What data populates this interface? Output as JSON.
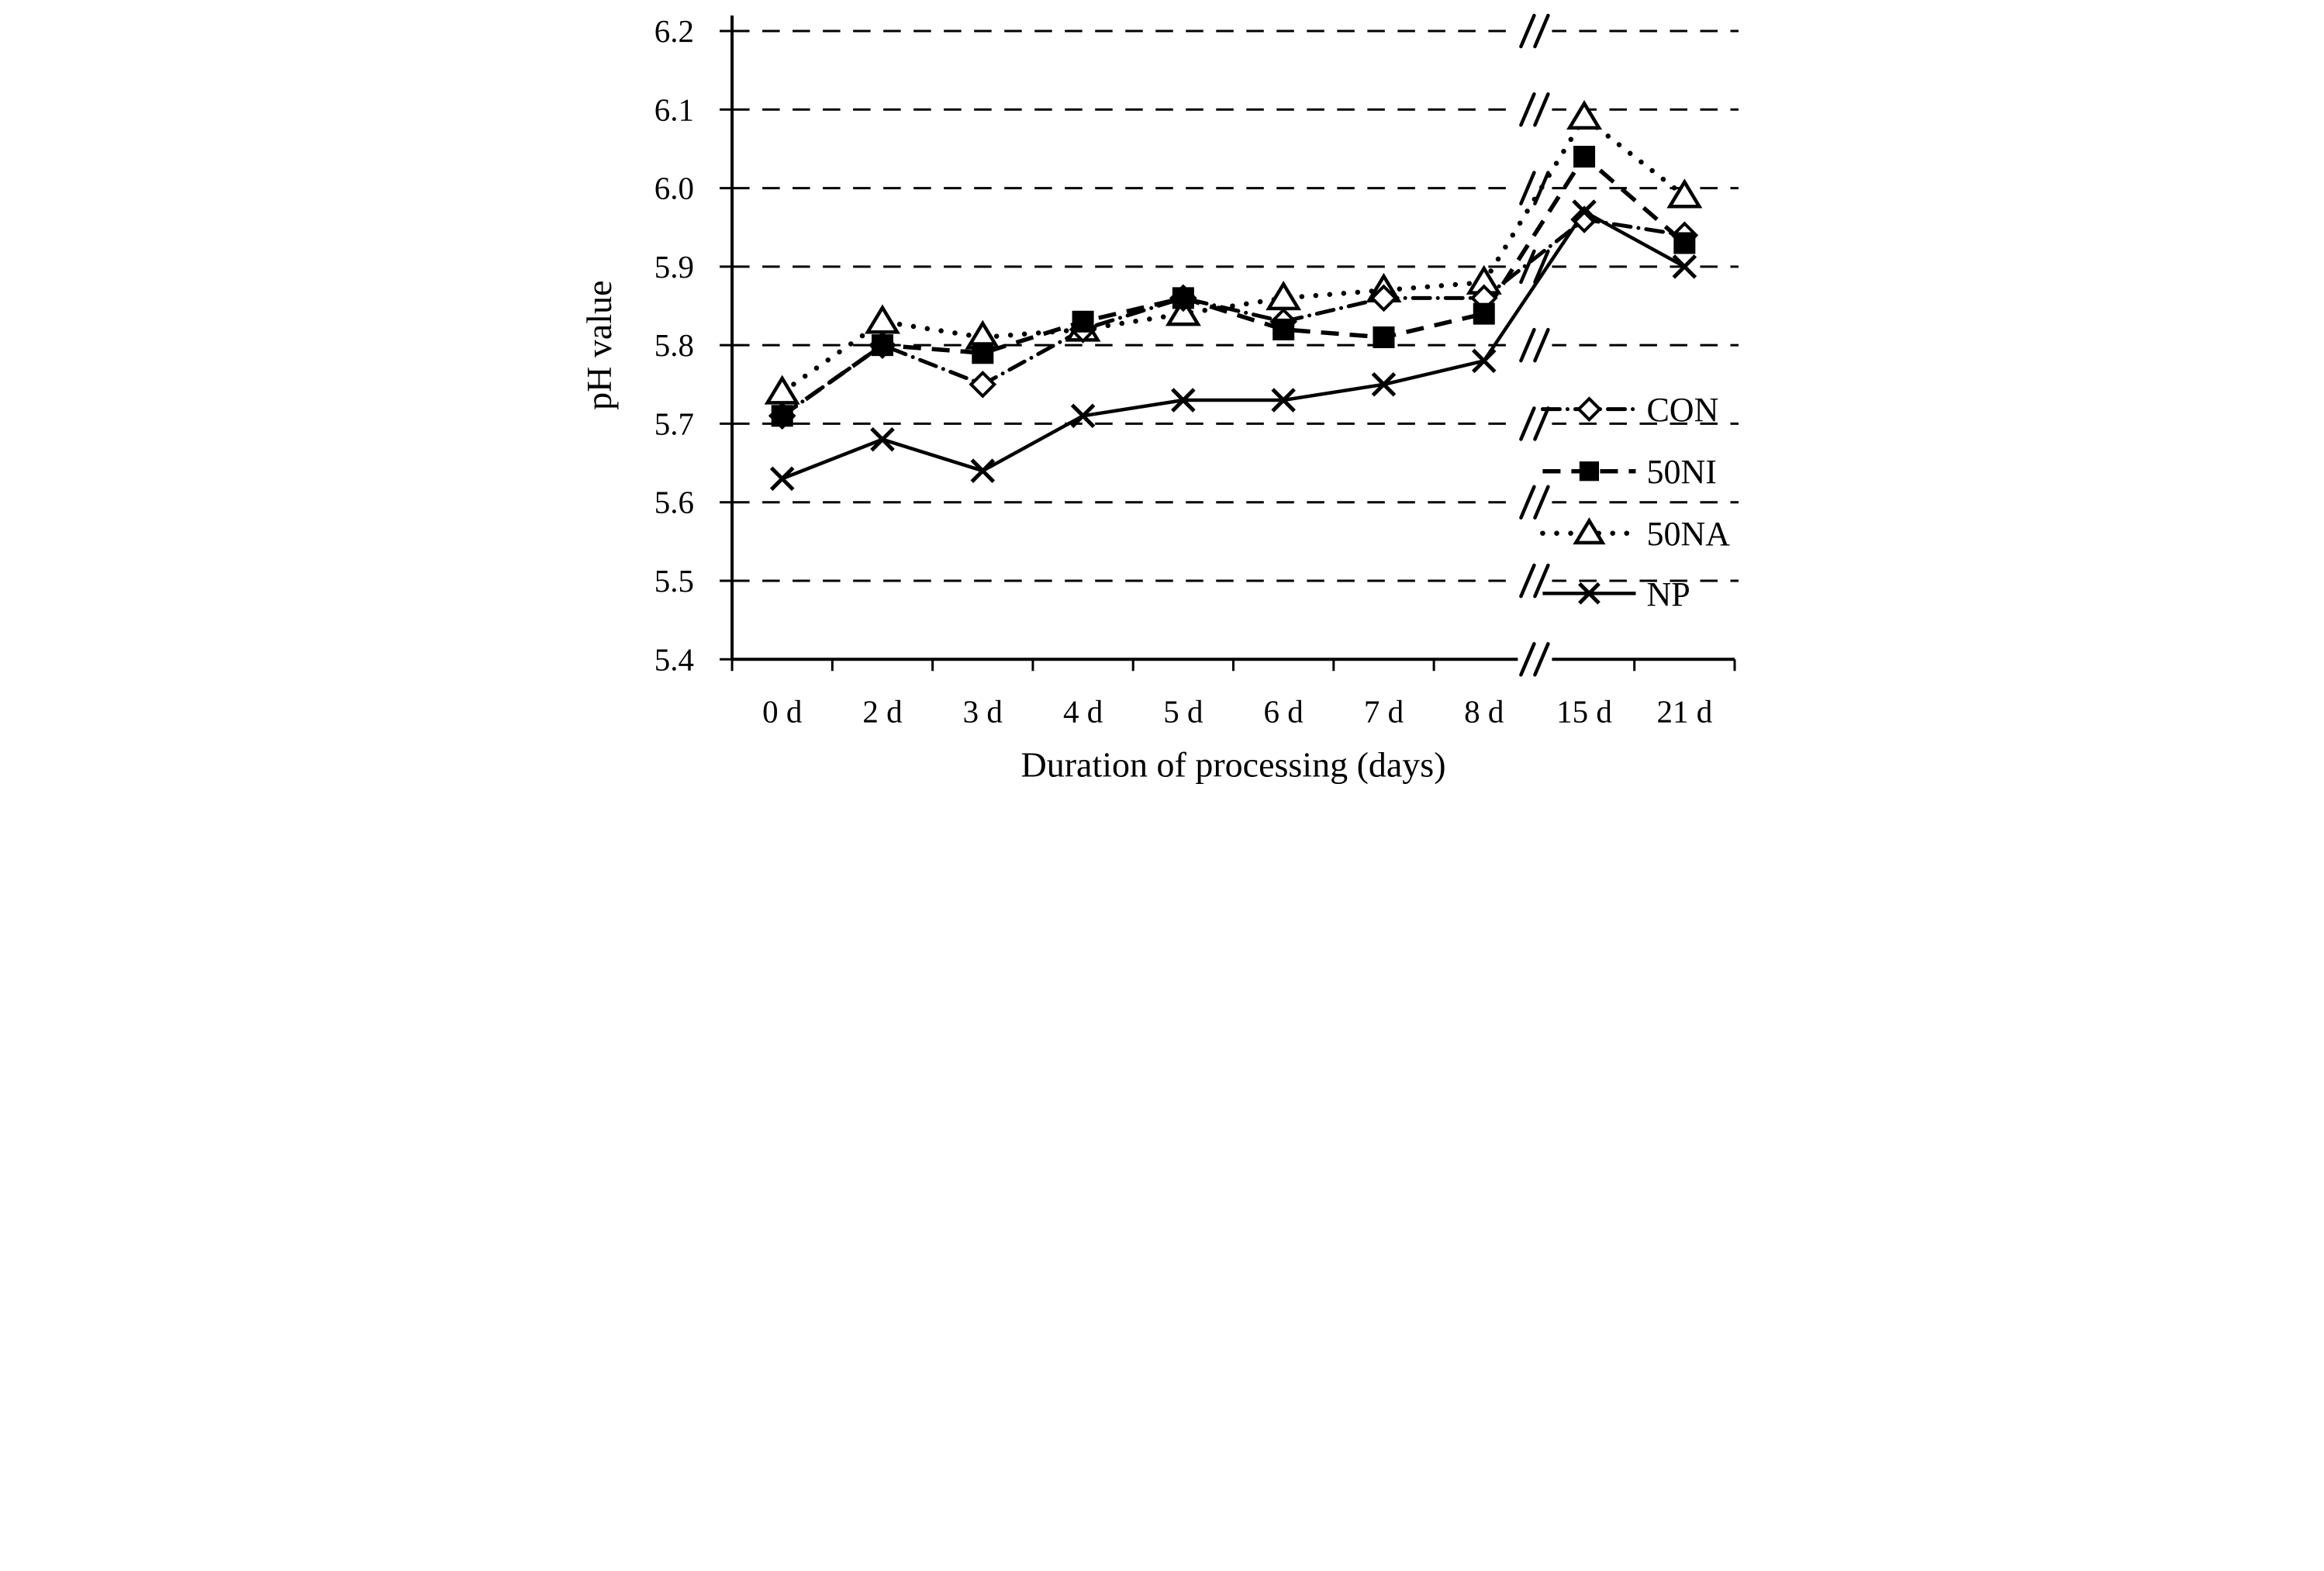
{
  "figure": {
    "background_color": "#ffffff",
    "ink_color": "#000000"
  },
  "chart_data": {
    "type": "line",
    "title": "",
    "xlabel": "Duration of processing (days)",
    "ylabel": "pH value",
    "categories": [
      "0 d",
      "2 d",
      "3 d",
      "4 d",
      "5 d",
      "6 d",
      "7 d",
      "8 d",
      "15 d",
      "21 d"
    ],
    "x_axis_break": {
      "present": true,
      "between": [
        "8 d",
        "15 d"
      ],
      "symbol": "//"
    },
    "y_ticks": [
      6.2,
      6.1,
      6.0,
      5.9,
      5.8,
      5.7,
      5.6,
      5.5,
      5.4
    ],
    "y_tick_labels": [
      "6.2",
      "6.1",
      "6.0",
      "5.9",
      "5.8",
      "5.7",
      "5.6",
      "5.5",
      "5.4"
    ],
    "ylim": [
      5.4,
      6.2
    ],
    "grid": "horizontal-dashed",
    "legend_position": "inside-right",
    "series": [
      {
        "name": "CON",
        "line_style": "dash-dot",
        "marker": "open-diamond",
        "values": [
          5.71,
          5.8,
          5.75,
          5.82,
          5.86,
          5.83,
          5.86,
          5.86,
          5.96,
          5.94
        ]
      },
      {
        "name": "50NI",
        "line_style": "dashed",
        "marker": "filled-square",
        "values": [
          5.71,
          5.8,
          5.79,
          5.83,
          5.86,
          5.82,
          5.81,
          5.84,
          6.04,
          5.93
        ]
      },
      {
        "name": "50NA",
        "line_style": "dotted",
        "marker": "open-triangle",
        "values": [
          5.74,
          5.83,
          5.81,
          5.82,
          5.84,
          5.86,
          5.87,
          5.88,
          6.09,
          5.99
        ]
      },
      {
        "name": "NP",
        "line_style": "solid",
        "marker": "x-cross",
        "values": [
          5.63,
          5.68,
          5.64,
          5.71,
          5.73,
          5.73,
          5.75,
          5.78,
          5.97,
          5.9
        ]
      }
    ]
  }
}
